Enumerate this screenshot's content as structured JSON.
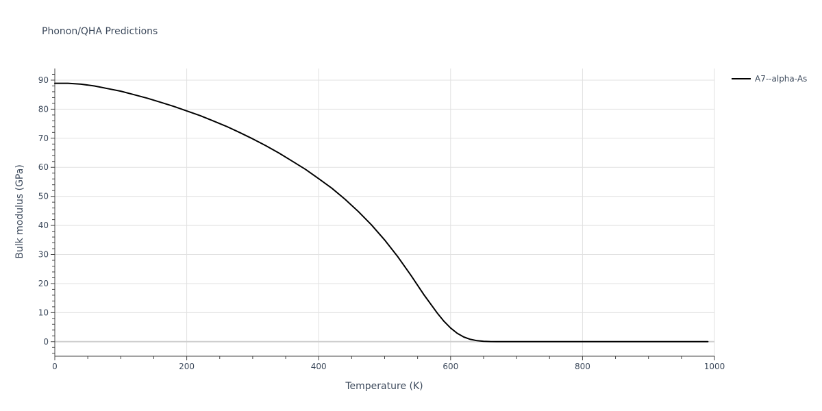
{
  "chart_data": {
    "type": "line",
    "title": "Phonon/QHA Predictions",
    "xlabel": "Temperature (K)",
    "ylabel": "Bulk modulus (GPa)",
    "xlim": [
      0,
      1000
    ],
    "ylim": [
      -5,
      94
    ],
    "x_ticks": [
      0,
      200,
      400,
      600,
      800,
      1000
    ],
    "y_ticks": [
      0,
      10,
      20,
      30,
      40,
      50,
      60,
      70,
      80,
      90
    ],
    "grid": true,
    "legend_position": "top-right",
    "series": [
      {
        "name": "A7--alpha-As",
        "color": "#000000",
        "x": [
          0,
          20,
          40,
          60,
          80,
          100,
          120,
          140,
          160,
          180,
          200,
          220,
          240,
          260,
          280,
          300,
          320,
          340,
          360,
          380,
          400,
          420,
          440,
          460,
          480,
          500,
          520,
          540,
          560,
          580,
          590,
          600,
          610,
          620,
          630,
          640,
          650,
          660,
          670,
          680,
          700,
          750,
          800,
          850,
          900,
          950,
          990
        ],
        "y": [
          88.9,
          88.9,
          88.6,
          88.0,
          87.1,
          86.2,
          85.0,
          83.8,
          82.4,
          81.0,
          79.4,
          77.8,
          76.0,
          74.1,
          72.0,
          69.8,
          67.4,
          64.9,
          62.1,
          59.3,
          56.1,
          52.8,
          49.0,
          44.8,
          40.2,
          35.0,
          29.2,
          22.8,
          16.0,
          9.8,
          7.0,
          4.7,
          2.9,
          1.6,
          0.8,
          0.35,
          0.15,
          0.05,
          0.01,
          0,
          0,
          0,
          0,
          0,
          0,
          0,
          0
        ]
      }
    ]
  }
}
